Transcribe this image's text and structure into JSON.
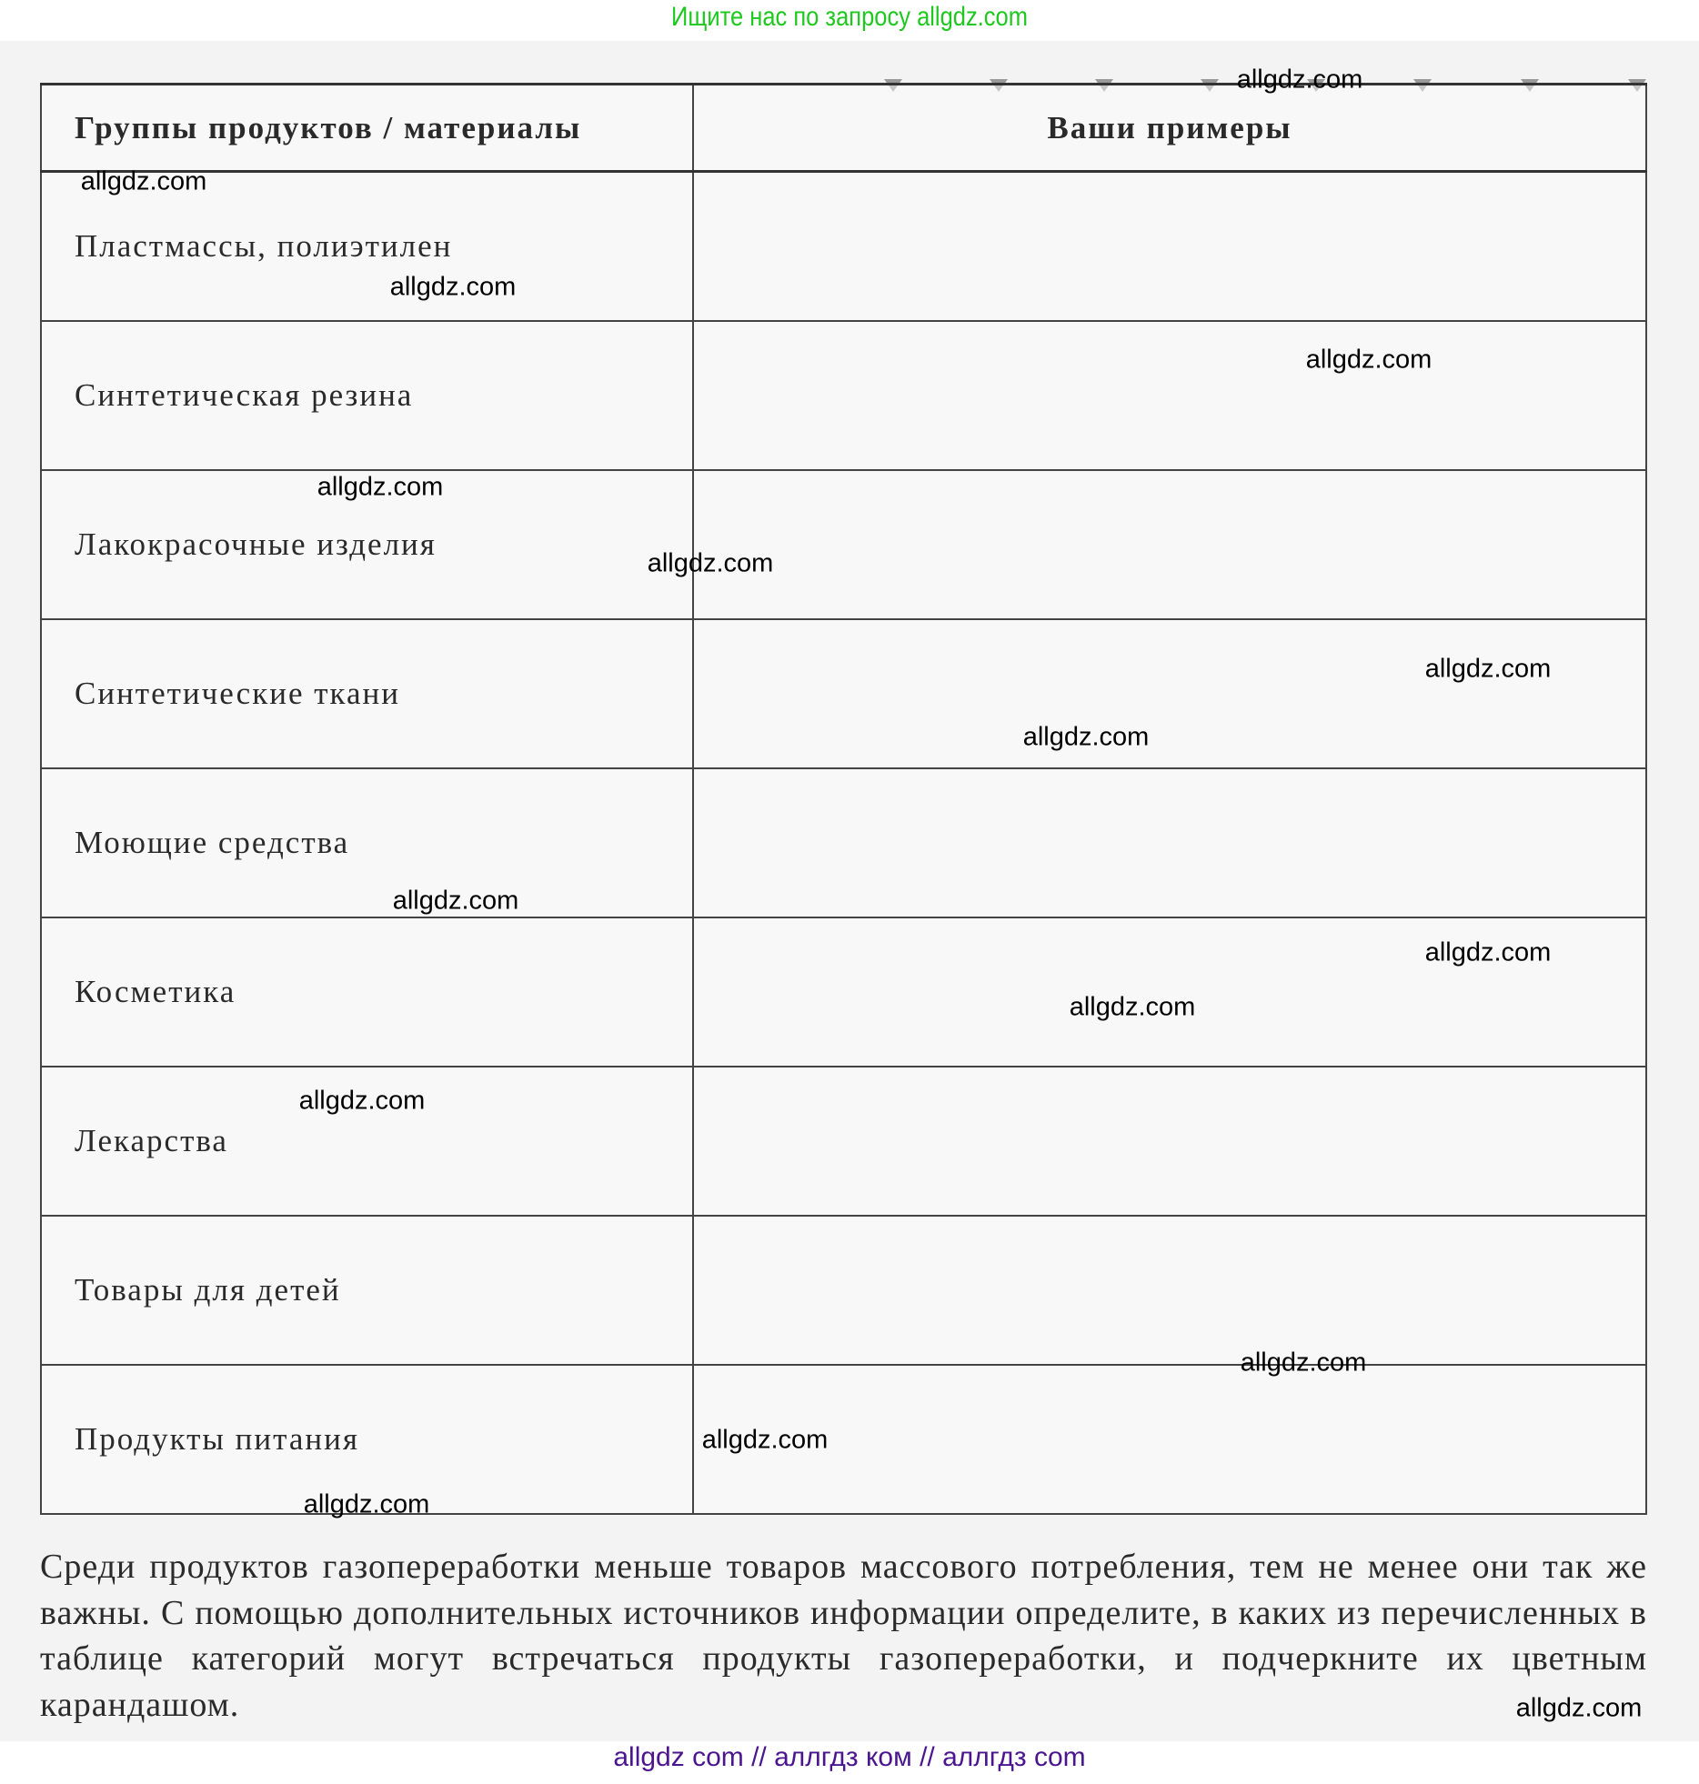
{
  "banner": "Ищите нас по запросу allgdz.com",
  "table": {
    "headers": [
      "Группы продуктов / материалы",
      "Ваши примеры"
    ],
    "rows": [
      {
        "group": "Пластмассы, полиэтилен",
        "examples": ""
      },
      {
        "group": "Синтетическая резина",
        "examples": ""
      },
      {
        "group": "Лакокрасочные изделия",
        "examples": ""
      },
      {
        "group": "Синтетические ткани",
        "examples": ""
      },
      {
        "group": "Моющие средства",
        "examples": ""
      },
      {
        "group": "Косметика",
        "examples": ""
      },
      {
        "group": "Лекарства",
        "examples": ""
      },
      {
        "group": "Товары для детей",
        "examples": ""
      },
      {
        "group": "Продукты питания",
        "examples": ""
      }
    ]
  },
  "paragraph": "Среди продуктов газопереработки меньше товаров массового потребления, тем не менее они так же важны. С помощью дополнительных источников информации определите, в каких из перечисленных в таблице категорий могут встречаться продукты газопереработки, и подчеркните их цветным карандашом.",
  "watermark": "allgdz.com",
  "footer": "allgdz com  //  аллгдз ком  //  аллгдз com",
  "colors": {
    "banner": "#1ec81e",
    "footer": "#4b1590"
  }
}
